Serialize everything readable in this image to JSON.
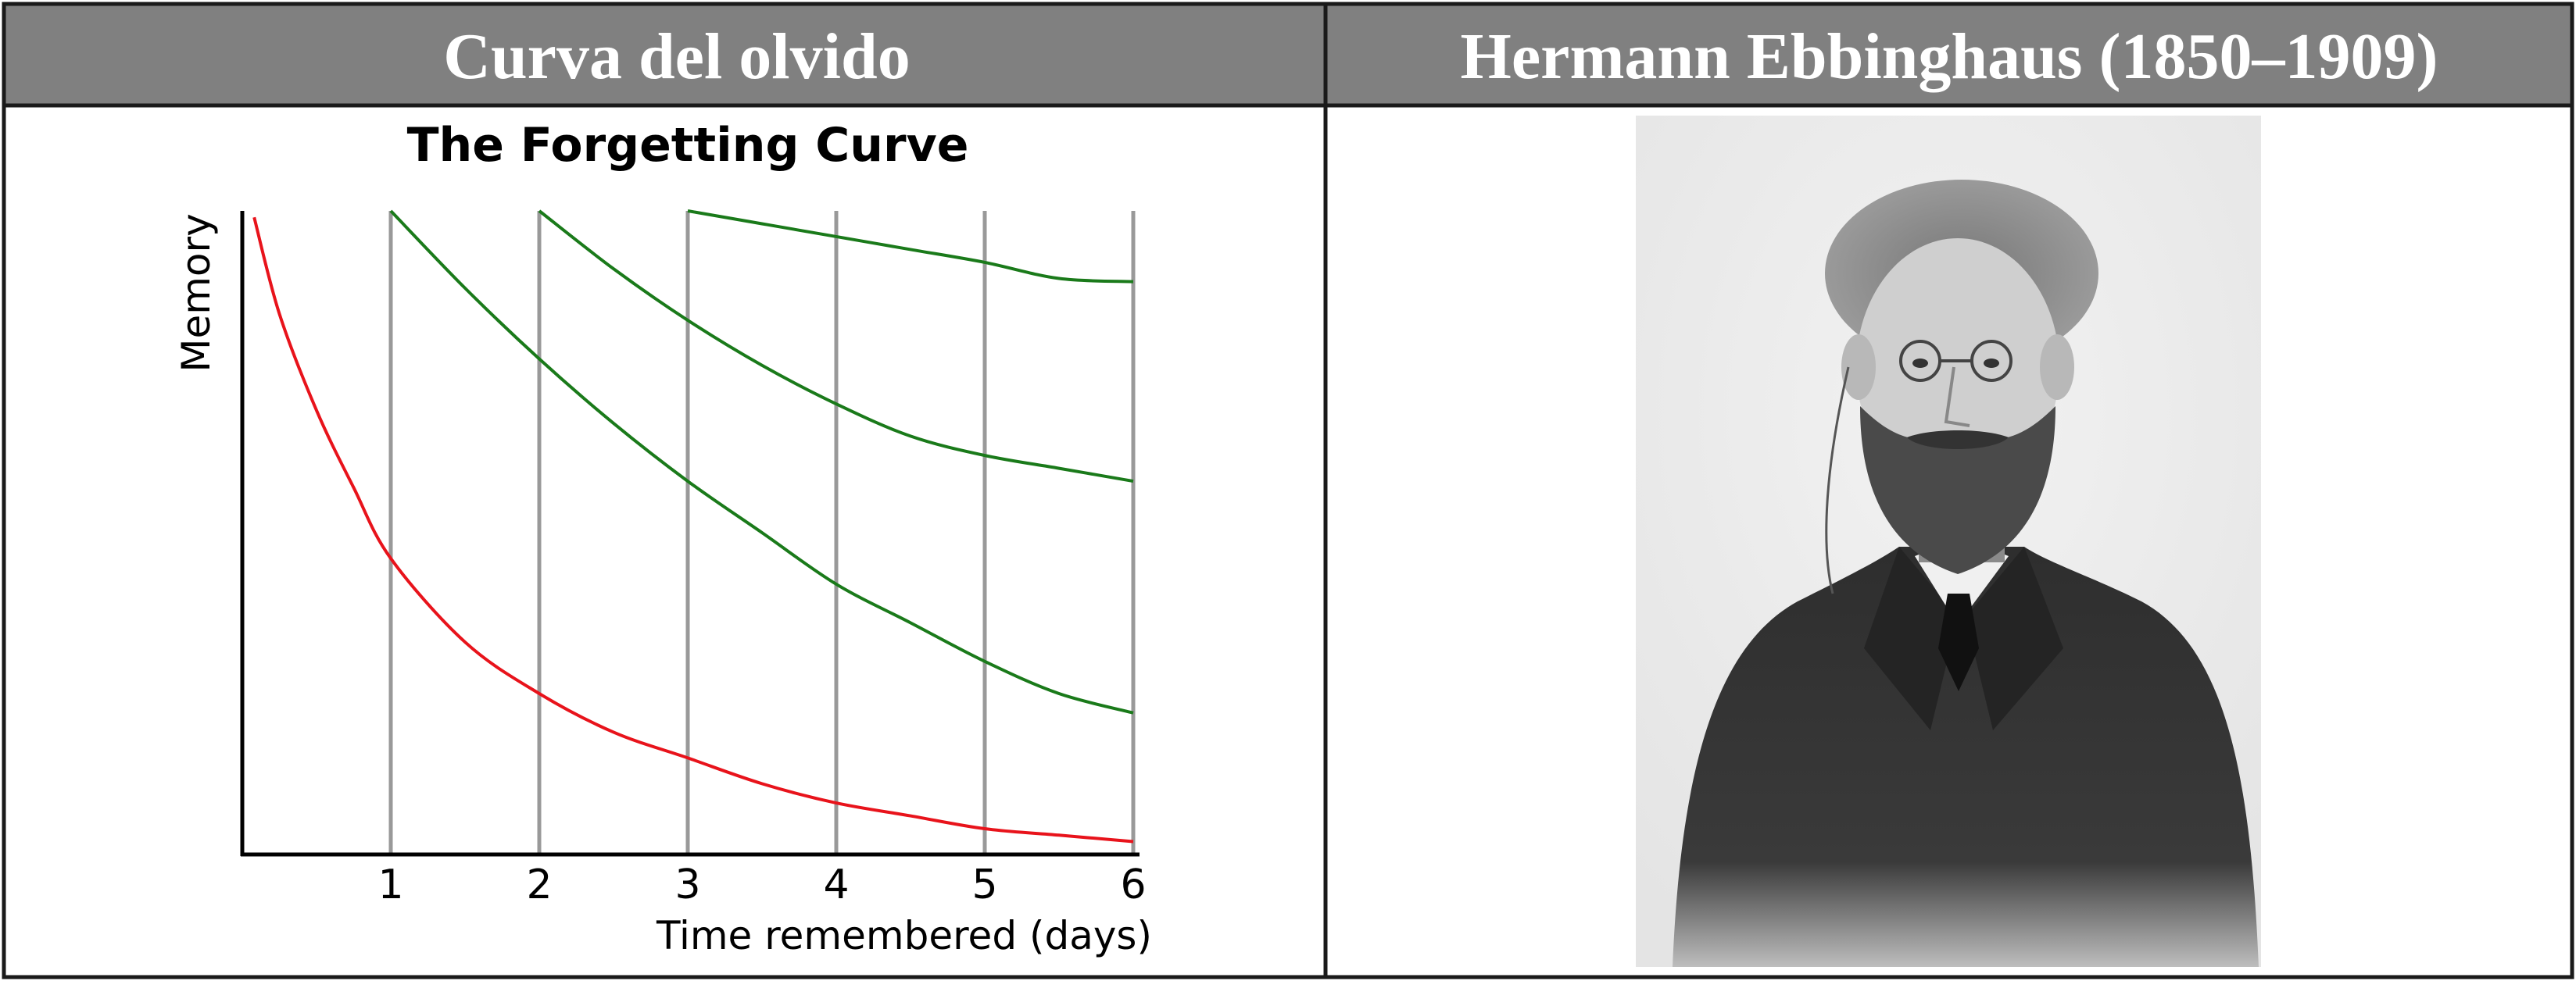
{
  "table": {
    "left_header": "Curva del olvido",
    "right_header": "Hermann Ebbinghaus (1850–1909)"
  },
  "colors": {
    "header_background": "#808080",
    "border": "#1a1a1a",
    "forgetting_curve": "#e8131b",
    "review_curves": "#1a7a1a",
    "gridline": "#999999"
  },
  "portrait": {
    "icon": "portrait-photo-icon",
    "style": "grayscale vignette photograph of a bearded man in a dark suit with pince-nez glasses"
  },
  "chart_data": {
    "type": "line",
    "title": "The Forgetting Curve",
    "xlabel": "Time remembered (days)",
    "ylabel": "Memory",
    "xlim": [
      0,
      6
    ],
    "ylim": [
      0,
      1
    ],
    "x_ticks": [
      "1",
      "2",
      "3",
      "4",
      "5",
      "6"
    ],
    "vertical_gridlines_at": [
      1,
      2,
      3,
      4,
      5,
      6
    ],
    "grid": "vertical only",
    "legend": "none",
    "series": [
      {
        "color": "#e8131b",
        "x": [
          0.08,
          0.25,
          0.5,
          0.75,
          1,
          1.5,
          2,
          2.5,
          3,
          3.5,
          4,
          4.5,
          5,
          5.5,
          6
        ],
        "y": [
          0.99,
          0.84,
          0.69,
          0.57,
          0.46,
          0.33,
          0.25,
          0.19,
          0.15,
          0.11,
          0.08,
          0.06,
          0.04,
          0.03,
          0.02
        ]
      },
      {
        "color": "#1a7a1a",
        "x": [
          1,
          1.5,
          2,
          2.5,
          3,
          3.5,
          4,
          4.5,
          5,
          5.5,
          6
        ],
        "y": [
          1.0,
          0.88,
          0.77,
          0.67,
          0.58,
          0.5,
          0.42,
          0.36,
          0.3,
          0.25,
          0.22
        ]
      },
      {
        "color": "#1a7a1a",
        "x": [
          2,
          2.5,
          3,
          3.5,
          4,
          4.5,
          5,
          5.5,
          6
        ],
        "y": [
          1.0,
          0.91,
          0.83,
          0.76,
          0.7,
          0.65,
          0.62,
          0.6,
          0.58
        ]
      },
      {
        "color": "#1a7a1a",
        "x": [
          3,
          3.5,
          4,
          4.5,
          5,
          5.5,
          6
        ],
        "y": [
          1.0,
          0.98,
          0.96,
          0.94,
          0.92,
          0.895,
          0.89
        ]
      }
    ]
  }
}
